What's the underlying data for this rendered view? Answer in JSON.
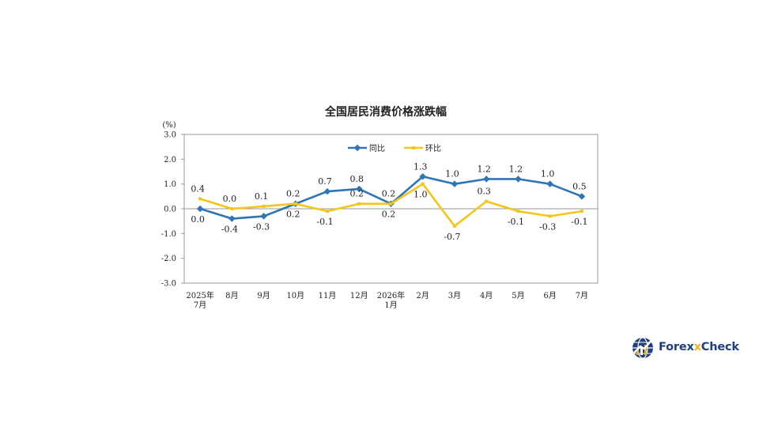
{
  "chart_data": {
    "type": "line",
    "title": "全国居民消费价格涨跌幅",
    "unit_label": "(%)",
    "categories": [
      [
        "2025年",
        "7月"
      ],
      [
        "8月"
      ],
      [
        "9月"
      ],
      [
        "10月"
      ],
      [
        "11月"
      ],
      [
        "12月"
      ],
      [
        "2026年",
        "1月"
      ],
      [
        "2月"
      ],
      [
        "3月"
      ],
      [
        "4月"
      ],
      [
        "5月"
      ],
      [
        "6月"
      ],
      [
        "7月"
      ]
    ],
    "series": [
      {
        "name": "同比",
        "color": "#2e75b6",
        "values": [
          0.0,
          -0.4,
          -0.3,
          0.2,
          0.7,
          0.8,
          0.2,
          1.3,
          1.0,
          1.2,
          1.2,
          1.0,
          0.5
        ],
        "labels": [
          "0.0",
          "-0.4",
          "-0.3",
          "0.2",
          "0.7",
          "0.8",
          "0.2",
          "1.3",
          "1.0",
          "1.2",
          "1.2",
          "1.0",
          "0.5"
        ]
      },
      {
        "name": "环比",
        "color": "#f5c518",
        "values": [
          0.4,
          0.0,
          0.1,
          0.2,
          -0.1,
          0.2,
          0.2,
          1.0,
          -0.7,
          0.3,
          -0.1,
          -0.3,
          -0.1
        ],
        "labels": [
          "0.4",
          "0.0",
          "0.1",
          "0.2",
          "-0.1",
          "0.2",
          "0.2",
          "1.0",
          "-0.7",
          "0.3",
          "-0.1",
          "-0.3",
          "-0.1"
        ]
      }
    ],
    "y_ticks": [
      "3.0",
      "2.0",
      "1.0",
      "0.0",
      "-1.0",
      "-2.0",
      "-3.0"
    ],
    "ylim": [
      -3,
      3
    ],
    "legend_position": "top-center",
    "grid": false
  },
  "logo": {
    "text_forex": "Forex",
    "text_x": "x",
    "text_check": "Check",
    "icon": "globe-chart-icon",
    "color_primary": "#1f3f80",
    "color_accent": "#f1b02c"
  }
}
